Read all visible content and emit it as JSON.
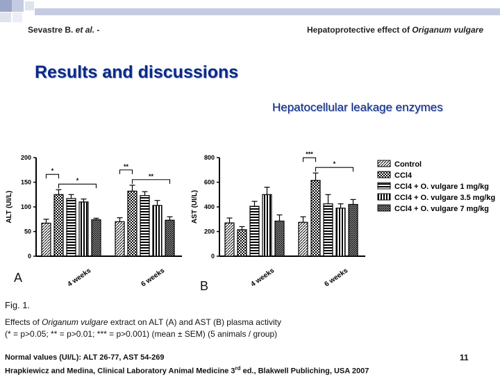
{
  "header": {
    "left_author": "Sevastre B.",
    "left_etal": "et al.",
    "left_dash": " -",
    "right_text": "Hepatoprotective effect of ",
    "right_italic": "Origanum vulgare"
  },
  "slide": {
    "title": "Results and discussions",
    "subtitle": "Hepatocellular leakage enzymes",
    "panel_a": "A",
    "panel_b": "B",
    "figure_label": "Fig. 1.",
    "caption_pre": "Effects of ",
    "caption_italic": "Origanum vulgare",
    "caption_post": " extract on ALT (A) and AST (B) plasma activity",
    "caption_line2": "(* = p>0.05; ** = p>0.01; *** = p>0.001) (mean ± SEM) (5 animals / group)",
    "normal_values": "Normal values  (UI/L): ALT 26-77, AST 54-269",
    "reference_pre": "Hrapkiewicz and Medina, Clinical Laboratory Animal Medicine 3",
    "reference_sup": "rd",
    "reference_post": " ed., Blakwell Publiching, USA 2007",
    "page_number": "11"
  },
  "colors": {
    "title": "#0a2a8a",
    "accent_squares": "#9aa5c8",
    "bar_stroke": "#000000"
  },
  "chart_data": [
    {
      "type": "bar",
      "panel": "A",
      "ylabel": "ALT (UI/L)",
      "ylim": [
        0,
        200
      ],
      "yticks": [
        0,
        50,
        100,
        150,
        200
      ],
      "categories": [
        "4 weeks",
        "6 weeks"
      ],
      "series": [
        {
          "name": "Control",
          "pattern": "hatch",
          "values": [
            67,
            70
          ],
          "errors": [
            8,
            8
          ]
        },
        {
          "name": "CCl4",
          "pattern": "check",
          "values": [
            125,
            132
          ],
          "errors": [
            10,
            12
          ]
        },
        {
          "name": "CCl4 + O. vulgare 1 mg/kg",
          "pattern": "hstripe",
          "values": [
            117,
            123
          ],
          "errors": [
            8,
            8
          ]
        },
        {
          "name": "CCl4 + O. vulgare 3.5 mg/kg",
          "pattern": "vstripe",
          "values": [
            110,
            103
          ],
          "errors": [
            6,
            10
          ]
        },
        {
          "name": "CCl4 + O. vulgare 7 mg/kg",
          "pattern": "dense",
          "values": [
            74,
            73
          ],
          "errors": [
            3,
            7
          ]
        }
      ],
      "annotations": [
        {
          "group": "4 weeks",
          "from": 0,
          "to": 1,
          "label": "*",
          "level": 1
        },
        {
          "group": "4 weeks",
          "from": 1,
          "to": 4,
          "label": "*",
          "level": 0
        },
        {
          "group": "6 weeks",
          "from": 0,
          "to": 1,
          "label": "**",
          "level": 1
        },
        {
          "group": "6 weeks",
          "from": 1,
          "to": 4,
          "label": "**",
          "level": 0
        }
      ]
    },
    {
      "type": "bar",
      "panel": "B",
      "ylabel": "AST (UI/L)",
      "ylim": [
        0,
        800
      ],
      "yticks": [
        0,
        200,
        400,
        600,
        800
      ],
      "categories": [
        "4 weeks",
        "6 weeks"
      ],
      "series": [
        {
          "name": "Control",
          "pattern": "hatch",
          "values": [
            270,
            275
          ],
          "errors": [
            40,
            45
          ]
        },
        {
          "name": "CCl4",
          "pattern": "check",
          "values": [
            215,
            615
          ],
          "errors": [
            25,
            60
          ]
        },
        {
          "name": "CCl4 + O. vulgare 1 mg/kg",
          "pattern": "hstripe",
          "values": [
            405,
            425
          ],
          "errors": [
            40,
            75
          ]
        },
        {
          "name": "CCl4 + O. vulgare 3.5 mg/kg",
          "pattern": "vstripe",
          "values": [
            500,
            390
          ],
          "errors": [
            60,
            35
          ]
        },
        {
          "name": "CCl4 + O. vulgare 7 mg/kg",
          "pattern": "dense",
          "values": [
            285,
            420
          ],
          "errors": [
            50,
            40
          ]
        }
      ],
      "annotations": [
        {
          "group": "6 weeks",
          "from": 0,
          "to": 1,
          "label": "***",
          "level": 1
        },
        {
          "group": "6 weeks",
          "from": 1,
          "to": 4,
          "label": "*",
          "level": 0
        }
      ]
    }
  ]
}
